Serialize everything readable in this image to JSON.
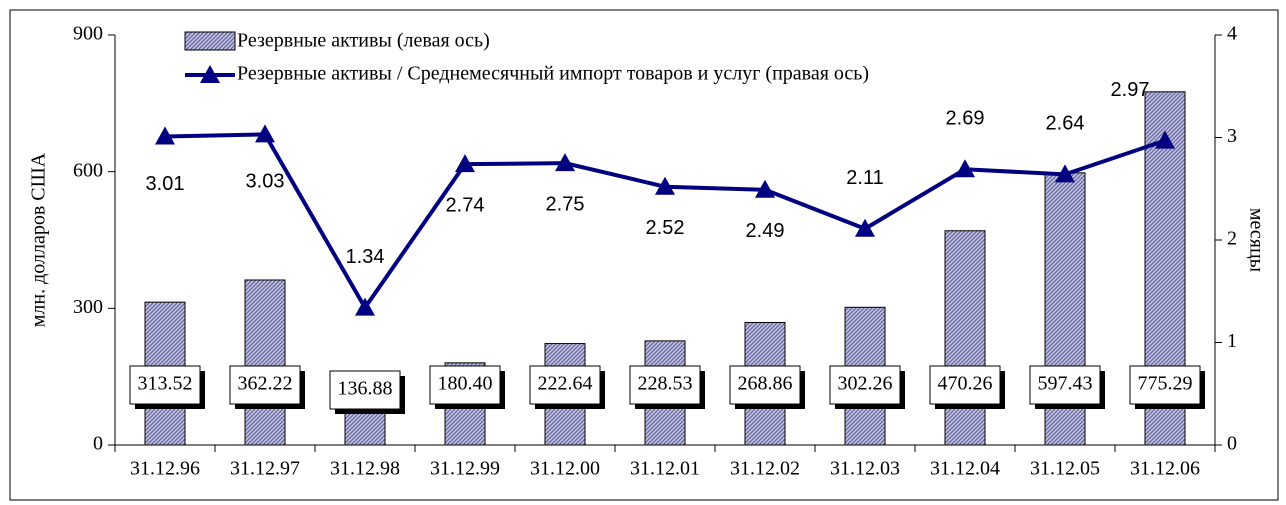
{
  "chart_data": {
    "type": "bar_line",
    "y_label": "млн. долларов США",
    "y2_label": "месяцы",
    "categories": [
      "31.12.96",
      "31.12.97",
      "31.12.98",
      "31.12.99",
      "31.12.00",
      "31.12.01",
      "31.12.02",
      "31.12.03",
      "31.12.04",
      "31.12.05",
      "31.12.06"
    ],
    "series": [
      {
        "name": "Резервные активы (левая ось)",
        "color": "#9999cc",
        "type": "bar",
        "values": [
          313.52,
          362.22,
          136.88,
          180.4,
          222.64,
          228.53,
          268.86,
          302.26,
          470.26,
          597.43,
          775.29
        ],
        "value_labels": [
          "313.52",
          "362.22",
          "136.88",
          "180.40",
          "222.64",
          "228.53",
          "268.86",
          "302.26",
          "470.26",
          "597.43",
          "775.29"
        ]
      },
      {
        "name": "Резервные активы / Среднемесячный импорт товаров и услуг (правая ось)",
        "color": "#000080",
        "type": "line",
        "axis": "y2",
        "values": [
          3.01,
          3.03,
          1.34,
          2.74,
          2.75,
          2.52,
          2.49,
          2.11,
          2.69,
          2.64,
          2.97
        ]
      }
    ],
    "ylim": [
      0,
      900
    ],
    "yticks": [
      0,
      300,
      600,
      900
    ],
    "y2lim": [
      0,
      4
    ],
    "y2ticks": [
      0,
      1,
      2,
      3,
      4
    ]
  }
}
